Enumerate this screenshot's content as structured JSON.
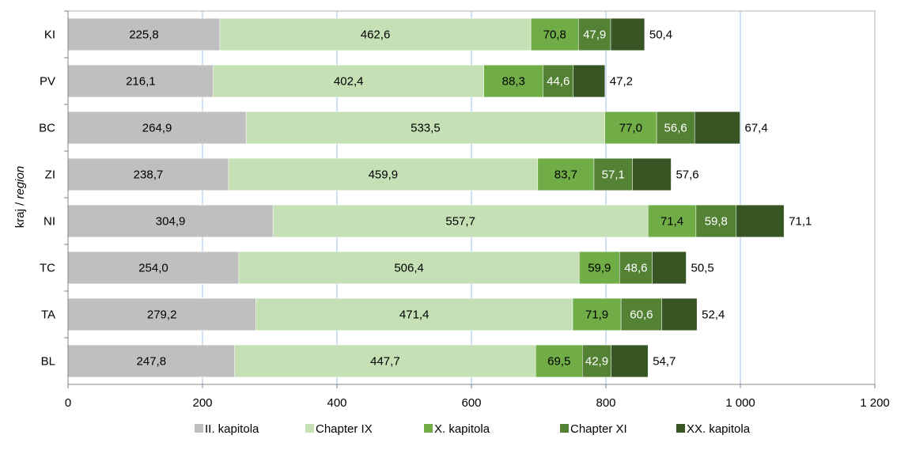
{
  "chart_data": {
    "type": "bar",
    "orientation": "horizontal",
    "stacked": true,
    "title": "",
    "xlabel": "",
    "ylabel": "kraj / region",
    "ylabel_parts": {
      "normal": "kraj / ",
      "italic": "region"
    },
    "xlim": [
      0,
      1200
    ],
    "x_ticks": [
      0,
      200,
      400,
      600,
      800,
      1000,
      1200
    ],
    "x_tick_labels": [
      "0",
      "200",
      "400",
      "600",
      "800",
      "1 000",
      "1 200"
    ],
    "grid": "vertical",
    "legend": "bottom",
    "categories": [
      "KI",
      "PV",
      "BC",
      "ZI",
      "NI",
      "TC",
      "TA",
      "BL"
    ],
    "series": [
      {
        "name": "II. kapitola",
        "color": "#bfbfbf",
        "label_color": "#000000",
        "values": [
          225.8,
          216.1,
          264.9,
          238.7,
          304.9,
          254.0,
          279.2,
          247.8
        ],
        "labels": [
          "225,8",
          "216,1",
          "264,9",
          "238,7",
          "304,9",
          "254,0",
          "279,2",
          "247,8"
        ]
      },
      {
        "name": "Chapter IX",
        "color": "#c5e0b4",
        "label_color": "#000000",
        "values": [
          462.6,
          402.4,
          533.5,
          459.9,
          557.7,
          506.4,
          471.4,
          447.7
        ],
        "labels": [
          "462,6",
          "402,4",
          "533,5",
          "459,9",
          "557,7",
          "506,4",
          "471,4",
          "447,7"
        ]
      },
      {
        "name": "X. kapitola",
        "color": "#70ad47",
        "label_color": "#000000",
        "values": [
          70.8,
          88.3,
          77.0,
          83.7,
          71.4,
          59.9,
          71.9,
          69.5
        ],
        "labels": [
          "70,8",
          "88,3",
          "77,0",
          "83,7",
          "71,4",
          "59,9",
          "71,9",
          "69,5"
        ]
      },
      {
        "name": "Chapter XI",
        "color": "#548235",
        "label_color": "#ffffff",
        "values": [
          47.9,
          44.6,
          56.6,
          57.1,
          59.8,
          48.6,
          60.6,
          42.9
        ],
        "labels": [
          "47,9",
          "44,6",
          "56,6",
          "57,1",
          "59,8",
          "48,6",
          "60,6",
          "42,9"
        ]
      },
      {
        "name": "XX. kapitola",
        "color": "#375623",
        "label_color": "#000000",
        "label_position": "outside",
        "values": [
          50.4,
          47.2,
          67.4,
          57.6,
          71.1,
          50.5,
          52.4,
          54.7
        ],
        "labels": [
          "50,4",
          "47,2",
          "67,4",
          "57,6",
          "71,1",
          "50,5",
          "52,4",
          "54,7"
        ]
      }
    ]
  }
}
